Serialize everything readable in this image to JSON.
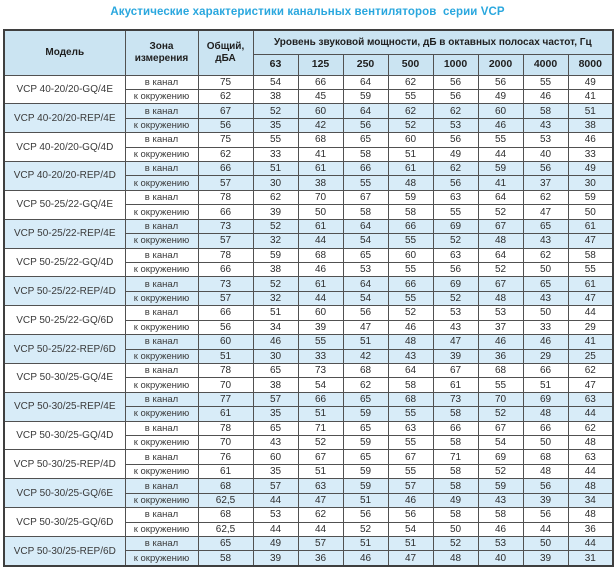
{
  "title": "Акустические характеристики канальных вентиляторов  серии VCP",
  "colors": {
    "title_blue": "#2aa7de",
    "header_bg": "#cbe4f2",
    "shaded_row_bg": "#d8ecf8",
    "plain_row_bg": "#ffffff",
    "border": "#515151",
    "text": "#2e2e2e"
  },
  "table": {
    "col_model": "Модель",
    "col_zone": "Зона измерения",
    "col_total": "Общий, дБА",
    "col_levels": "Уровень звуковой мощности, дБ в октавных полосах частот, Гц",
    "freq_headers": [
      "63",
      "125",
      "250",
      "500",
      "1000",
      "2000",
      "4000",
      "8000"
    ],
    "models": [
      {
        "name": "VCP 40-20/20-GQ/4E",
        "shaded": false,
        "rows": [
          {
            "zone": "в канал",
            "total": "75",
            "levels": [
              54,
              66,
              64,
              62,
              56,
              56,
              55,
              49
            ]
          },
          {
            "zone": "к окружению",
            "total": "62",
            "levels": [
              38,
              45,
              59,
              55,
              56,
              49,
              46,
              41
            ]
          }
        ]
      },
      {
        "name": "VCP 40-20/20-REP/4E",
        "shaded": true,
        "rows": [
          {
            "zone": "в канал",
            "total": "67",
            "levels": [
              52,
              60,
              64,
              62,
              62,
              60,
              58,
              51
            ]
          },
          {
            "zone": "к окружению",
            "total": "56",
            "levels": [
              35,
              42,
              56,
              52,
              53,
              46,
              43,
              38
            ]
          }
        ]
      },
      {
        "name": "VCP 40-20/20-GQ/4D",
        "shaded": false,
        "rows": [
          {
            "zone": "в канал",
            "total": "75",
            "levels": [
              55,
              68,
              65,
              60,
              56,
              55,
              53,
              46
            ]
          },
          {
            "zone": "к окружению",
            "total": "62",
            "levels": [
              33,
              41,
              58,
              51,
              49,
              44,
              40,
              33
            ]
          }
        ]
      },
      {
        "name": "VCP 40-20/20-REP/4D",
        "shaded": true,
        "rows": [
          {
            "zone": "в канал",
            "total": "66",
            "levels": [
              51,
              61,
              66,
              61,
              62,
              59,
              56,
              49
            ]
          },
          {
            "zone": "к окружению",
            "total": "57",
            "levels": [
              30,
              38,
              55,
              48,
              56,
              41,
              37,
              30
            ]
          }
        ]
      },
      {
        "name": "VCP 50-25/22-GQ/4E",
        "shaded": false,
        "rows": [
          {
            "zone": "в канал",
            "total": "78",
            "levels": [
              62,
              70,
              67,
              59,
              63,
              64,
              62,
              59
            ]
          },
          {
            "zone": "к окружению",
            "total": "66",
            "levels": [
              39,
              50,
              58,
              58,
              55,
              52,
              47,
              50
            ]
          }
        ]
      },
      {
        "name": "VCP 50-25/22-REP/4E",
        "shaded": true,
        "rows": [
          {
            "zone": "в канал",
            "total": "73",
            "levels": [
              52,
              61,
              64,
              66,
              69,
              67,
              65,
              61
            ]
          },
          {
            "zone": "к окружению",
            "total": "57",
            "levels": [
              32,
              44,
              54,
              55,
              52,
              48,
              43,
              47
            ]
          }
        ]
      },
      {
        "name": "VCP 50-25/22-GQ/4D",
        "shaded": false,
        "rows": [
          {
            "zone": "в канал",
            "total": "78",
            "levels": [
              59,
              68,
              65,
              60,
              63,
              64,
              62,
              58
            ]
          },
          {
            "zone": "к окружению",
            "total": "66",
            "levels": [
              38,
              46,
              53,
              55,
              56,
              52,
              50,
              55
            ]
          }
        ]
      },
      {
        "name": "VCP 50-25/22-REP/4D",
        "shaded": true,
        "rows": [
          {
            "zone": "в канал",
            "total": "73",
            "levels": [
              52,
              61,
              64,
              66,
              69,
              67,
              65,
              61
            ]
          },
          {
            "zone": "к окружению",
            "total": "57",
            "levels": [
              32,
              44,
              54,
              55,
              52,
              48,
              43,
              47
            ]
          }
        ]
      },
      {
        "name": "VCP 50-25/22-GQ/6D",
        "shaded": false,
        "rows": [
          {
            "zone": "в канал",
            "total": "66",
            "levels": [
              51,
              60,
              56,
              52,
              53,
              53,
              50,
              44
            ]
          },
          {
            "zone": "к окружению",
            "total": "56",
            "levels": [
              34,
              39,
              47,
              46,
              43,
              37,
              33,
              29
            ]
          }
        ]
      },
      {
        "name": "VCP 50-25/22-REP/6D",
        "shaded": true,
        "rows": [
          {
            "zone": "в канал",
            "total": "60",
            "levels": [
              46,
              55,
              51,
              48,
              47,
              46,
              46,
              41
            ]
          },
          {
            "zone": "к окружению",
            "total": "51",
            "levels": [
              30,
              33,
              42,
              43,
              39,
              36,
              29,
              25
            ]
          }
        ]
      },
      {
        "name": "VCP 50-30/25-GQ/4E",
        "shaded": false,
        "rows": [
          {
            "zone": "в канал",
            "total": "78",
            "levels": [
              65,
              73,
              68,
              64,
              67,
              68,
              66,
              62
            ]
          },
          {
            "zone": "к окружению",
            "total": "70",
            "levels": [
              38,
              54,
              62,
              58,
              61,
              55,
              51,
              47
            ]
          }
        ]
      },
      {
        "name": "VCP 50-30/25-REP/4E",
        "shaded": true,
        "rows": [
          {
            "zone": "в канал",
            "total": "77",
            "levels": [
              57,
              66,
              65,
              68,
              73,
              70,
              69,
              63
            ]
          },
          {
            "zone": "к окружению",
            "total": "61",
            "levels": [
              35,
              51,
              59,
              55,
              58,
              52,
              48,
              44
            ]
          }
        ]
      },
      {
        "name": "VCP 50-30/25-GQ/4D",
        "shaded": false,
        "rows": [
          {
            "zone": "в канал",
            "total": "78",
            "levels": [
              65,
              71,
              65,
              63,
              66,
              67,
              66,
              62
            ]
          },
          {
            "zone": "к окружению",
            "total": "70",
            "levels": [
              43,
              52,
              59,
              55,
              58,
              54,
              50,
              48
            ]
          }
        ]
      },
      {
        "name": "VCP 50-30/25-REP/4D",
        "shaded": false,
        "rows": [
          {
            "zone": "в канал",
            "total": "76",
            "levels": [
              60,
              67,
              65,
              67,
              71,
              69,
              68,
              63
            ]
          },
          {
            "zone": "к окружению",
            "total": "61",
            "levels": [
              35,
              51,
              59,
              55,
              58,
              52,
              48,
              44
            ]
          }
        ]
      },
      {
        "name": "VCP 50-30/25-GQ/6E",
        "shaded": true,
        "rows": [
          {
            "zone": "в канал",
            "total": "68",
            "levels": [
              57,
              63,
              59,
              57,
              58,
              59,
              56,
              48
            ]
          },
          {
            "zone": "к окружению",
            "total": "62,5",
            "levels": [
              44,
              47,
              51,
              46,
              49,
              43,
              39,
              34
            ]
          }
        ]
      },
      {
        "name": "VCP 50-30/25-GQ/6D",
        "shaded": false,
        "rows": [
          {
            "zone": "в канал",
            "total": "68",
            "levels": [
              53,
              62,
              56,
              56,
              58,
              58,
              56,
              48
            ]
          },
          {
            "zone": "к окружению",
            "total": "62,5",
            "levels": [
              44,
              44,
              52,
              54,
              50,
              46,
              44,
              36
            ]
          }
        ]
      },
      {
        "name": "VCP 50-30/25-REP/6D",
        "shaded": true,
        "rows": [
          {
            "zone": "в канал",
            "total": "65",
            "levels": [
              49,
              57,
              51,
              51,
              52,
              53,
              50,
              44
            ]
          },
          {
            "zone": "к окружению",
            "total": "58",
            "levels": [
              39,
              36,
              46,
              47,
              48,
              40,
              39,
              31
            ]
          }
        ]
      }
    ]
  }
}
